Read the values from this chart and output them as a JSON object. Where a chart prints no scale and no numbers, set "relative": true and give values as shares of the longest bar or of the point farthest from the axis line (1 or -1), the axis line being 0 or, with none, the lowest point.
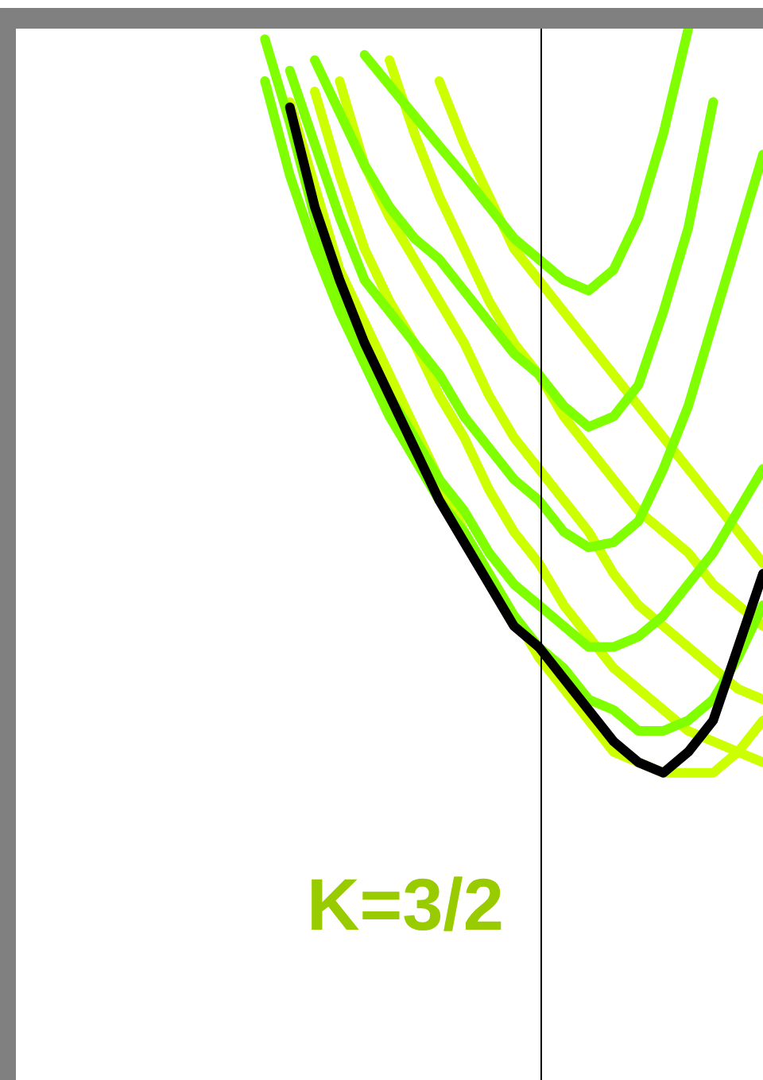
{
  "chart_data": {
    "type": "line",
    "relative": true,
    "marker": "none",
    "line_style": "solid",
    "annotations": [
      "K=3/2"
    ],
    "categories": [
      null,
      null,
      null,
      null,
      null,
      null,
      null,
      null,
      null,
      null,
      null,
      null,
      null,
      null,
      null,
      null,
      null,
      null,
      null,
      null,
      null,
      null,
      null,
      null,
      null,
      null,
      null,
      null,
      null,
      null,
      null
    ],
    "series": [
      {
        "color": "#ccff00",
        "values": [
          null,
          null,
          null,
          null,
          null,
          null,
          null,
          null,
          null,
          null,
          null,
          null,
          null,
          null,
          null,
          null,
          null,
          0.95,
          0.89,
          0.84,
          0.79,
          0.76,
          0.73,
          0.7,
          0.67,
          0.64,
          0.61,
          0.58,
          0.55,
          0.52,
          0.49
        ]
      },
      {
        "color": "#ccff00",
        "values": [
          null,
          null,
          null,
          null,
          null,
          null,
          null,
          null,
          null,
          null,
          null,
          null,
          null,
          null,
          null,
          0.97,
          0.9,
          0.84,
          0.79,
          0.74,
          0.7,
          0.67,
          0.63,
          0.6,
          0.57,
          0.54,
          0.52,
          0.5,
          0.47,
          0.45,
          0.43
        ]
      },
      {
        "color": "#ccff00",
        "values": [
          null,
          null,
          null,
          null,
          null,
          null,
          null,
          null,
          null,
          null,
          null,
          null,
          null,
          0.95,
          0.87,
          0.82,
          0.78,
          0.74,
          0.7,
          0.65,
          0.61,
          0.58,
          0.55,
          0.52,
          0.48,
          0.45,
          0.43,
          0.41,
          0.39,
          0.37,
          0.36
        ]
      },
      {
        "color": "#ccff00",
        "values": [
          null,
          null,
          null,
          null,
          null,
          null,
          null,
          null,
          null,
          null,
          null,
          null,
          0.94,
          0.86,
          0.79,
          0.74,
          0.7,
          0.65,
          0.61,
          0.56,
          0.52,
          0.49,
          0.45,
          0.42,
          0.39,
          0.37,
          0.35,
          0.33,
          0.32,
          0.31,
          0.3
        ]
      },
      {
        "color": "#ccff00",
        "values": [
          null,
          null,
          null,
          null,
          null,
          null,
          null,
          null,
          null,
          null,
          null,
          0.93,
          0.85,
          0.77,
          0.72,
          0.67,
          0.62,
          0.57,
          0.52,
          0.48,
          0.44,
          0.4,
          0.37,
          0.34,
          0.31,
          0.3,
          0.29,
          0.29,
          0.29,
          0.31,
          0.34
        ]
      },
      {
        "color": "#7fff00",
        "values": [
          null,
          null,
          null,
          null,
          null,
          null,
          null,
          null,
          null,
          null,
          null,
          null,
          null,
          null,
          0.975,
          0.946,
          0.917,
          0.888,
          0.86,
          0.83,
          0.8,
          0.78,
          0.76,
          0.75,
          0.77,
          0.82,
          0.9,
          1,
          null,
          null,
          null
        ]
      },
      {
        "color": "#7fff00",
        "values": [
          null,
          null,
          null,
          null,
          null,
          null,
          null,
          null,
          null,
          null,
          null,
          null,
          0.97,
          0.92,
          0.87,
          0.83,
          0.8,
          0.78,
          0.75,
          0.72,
          0.69,
          0.67,
          0.64,
          0.62,
          0.63,
          0.66,
          0.73,
          0.81,
          0.93,
          null,
          null
        ]
      },
      {
        "color": "#7fff00",
        "values": [
          null,
          null,
          null,
          null,
          null,
          null,
          null,
          null,
          null,
          null,
          null,
          0.96,
          0.89,
          0.82,
          0.76,
          0.73,
          0.7,
          0.67,
          0.63,
          0.6,
          0.57,
          0.55,
          0.52,
          0.505,
          0.51,
          0.53,
          0.58,
          0.64,
          0.72,
          0.8,
          0.88
        ]
      },
      {
        "color": "#7fff00",
        "values": [
          null,
          null,
          null,
          null,
          null,
          null,
          null,
          null,
          null,
          null,
          0.99,
          0.91,
          0.82,
          0.74,
          0.7,
          0.65,
          0.61,
          0.57,
          0.54,
          0.5,
          0.47,
          0.45,
          0.43,
          0.41,
          0.41,
          0.42,
          0.44,
          0.47,
          0.5,
          0.54,
          0.58
        ]
      },
      {
        "color": "#7fff00",
        "values": [
          null,
          null,
          null,
          null,
          null,
          null,
          null,
          null,
          null,
          null,
          0.95,
          0.86,
          0.79,
          0.73,
          0.68,
          0.63,
          0.59,
          0.55,
          0.52,
          0.48,
          0.44,
          0.41,
          0.39,
          0.36,
          0.35,
          0.33,
          0.33,
          0.34,
          0.36,
          0.4,
          0.45
        ]
      },
      {
        "color": "#000000",
        "values": [
          null,
          null,
          null,
          null,
          null,
          null,
          null,
          null,
          null,
          null,
          null,
          0.925,
          0.83,
          0.76,
          0.7,
          0.65,
          0.6,
          0.55,
          0.51,
          0.47,
          0.43,
          0.41,
          0.38,
          0.35,
          0.32,
          0.3,
          0.29,
          0.31,
          0.34,
          0.41,
          0.48
        ]
      }
    ]
  }
}
